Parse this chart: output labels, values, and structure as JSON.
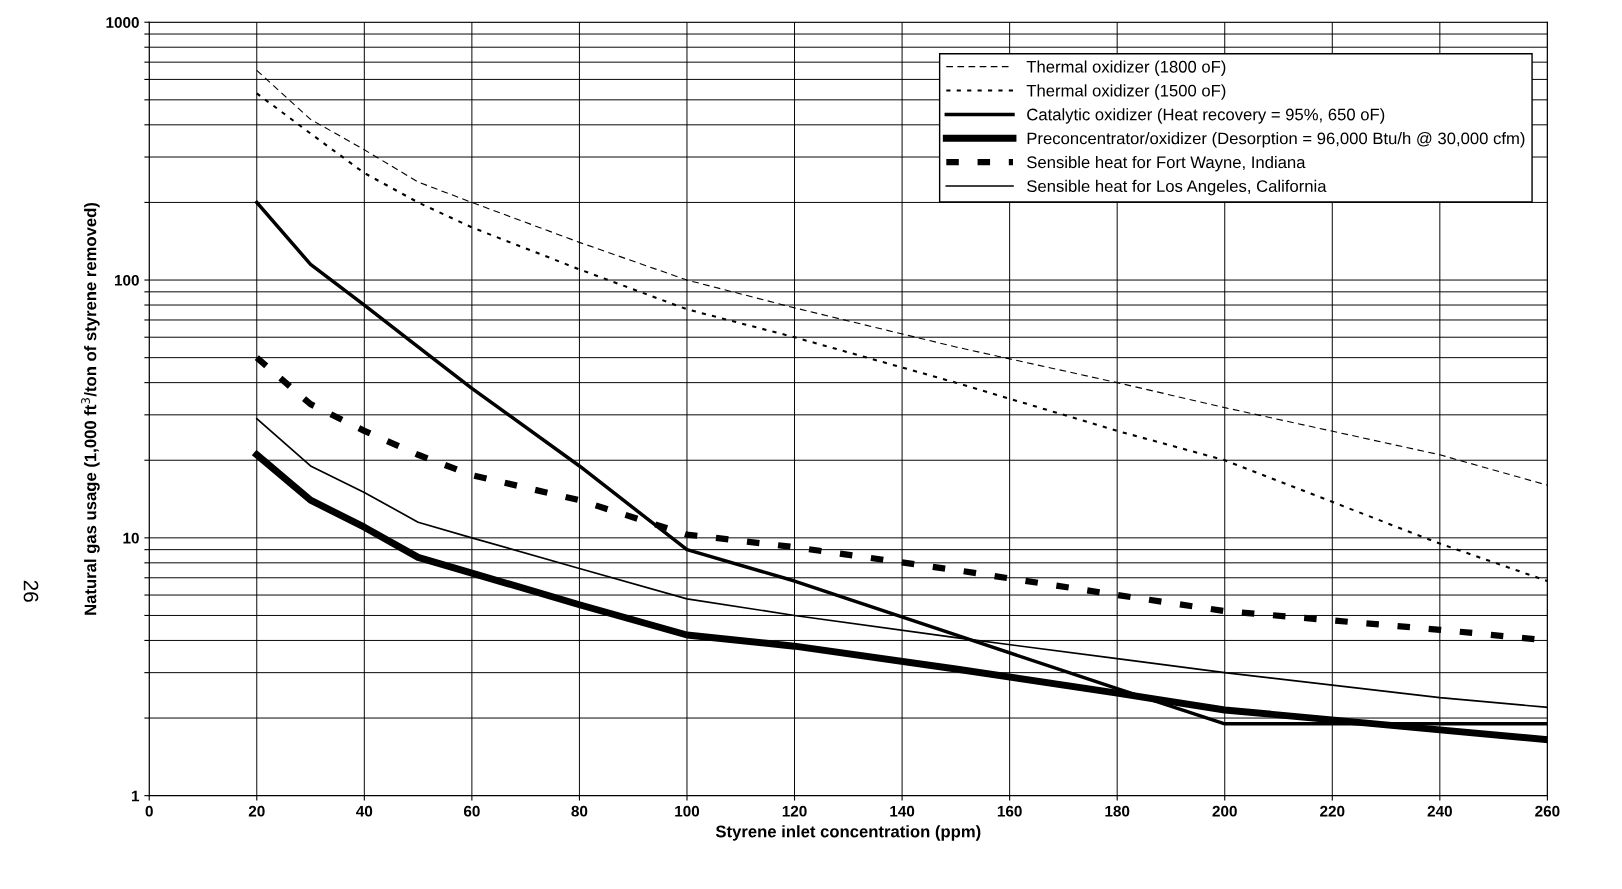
{
  "chart_data": {
    "type": "line",
    "xlabel": "Styrene inlet concentration (ppm)",
    "ylabel": "Natural gas usage (1,000 ft$^{3}$/ton of styrene removed)",
    "x": [
      20,
      30,
      40,
      50,
      60,
      80,
      100,
      120,
      150,
      180,
      200,
      240,
      260
    ],
    "series": [
      {
        "name": "Thermal oxidizer (1800 oF)",
        "color": "#000000",
        "line_style": "dashed",
        "values": [
          650,
          420,
          320,
          240,
          200,
          140,
          100,
          78,
          55,
          40,
          32,
          21,
          16
        ]
      },
      {
        "name": "Thermal oxidizer (1500 oF)",
        "color": "#000000",
        "line_style": "dotted",
        "values": [
          530,
          370,
          260,
          200,
          160,
          110,
          77,
          60,
          40,
          26,
          20,
          9.5,
          6.8
        ]
      },
      {
        "name": "Catalytic oxidizer (Heat recovery = 95%, 650 oF)",
        "color": "#000000",
        "line_style": "solid",
        "values": [
          200,
          115,
          80,
          55,
          38,
          19,
          9,
          6.8,
          4.2,
          2.6,
          1.9,
          1.9,
          1.9
        ]
      },
      {
        "name": "Preconcentrator/oxidizer (Desorption = 96,000 Btu/h @ 30,000 cfm)",
        "color": "#000000",
        "line_style": "solid",
        "values": [
          21,
          14,
          11,
          8.4,
          7.3,
          5.5,
          4.2,
          3.8,
          3.1,
          2.5,
          2.15,
          1.8,
          1.65
        ]
      },
      {
        "name": "Sensible heat for Fort Wayne, Indiana",
        "color": "#000000",
        "line_style": "dashed",
        "values": [
          50,
          33,
          26,
          21,
          17.5,
          14,
          10.3,
          9.2,
          7.5,
          6.0,
          5.2,
          4.4,
          4.0
        ]
      },
      {
        "name": "Sensible heat for Los Angeles, California",
        "color": "#000000",
        "line_style": "solid",
        "values": [
          29,
          19,
          15,
          11.5,
          10,
          7.6,
          5.8,
          5.0,
          4.1,
          3.4,
          3.0,
          2.4,
          2.2
        ]
      }
    ],
    "log": "y",
    "xlim": [
      0,
      260
    ],
    "xticks": [
      0,
      20,
      40,
      60,
      80,
      100,
      120,
      140,
      160,
      180,
      200,
      220,
      240,
      260
    ],
    "ylim": [
      1,
      1000
    ],
    "yticks": [
      1,
      {
        "value": 2,
        "label": null
      },
      {
        "value": 3,
        "label": null
      },
      {
        "value": 4,
        "label": null
      },
      {
        "value": 5,
        "label": null
      },
      {
        "value": 6,
        "label": null
      },
      {
        "value": 7,
        "label": null
      },
      {
        "value": 8,
        "label": null
      },
      {
        "value": 9,
        "label": null
      },
      10,
      {
        "value": 20,
        "label": null
      },
      {
        "value": 30,
        "label": null
      },
      {
        "value": 40,
        "label": null
      },
      {
        "value": 50,
        "label": null
      },
      {
        "value": 60,
        "label": null
      },
      {
        "value": 70,
        "label": null
      },
      {
        "value": 80,
        "label": null
      },
      {
        "value": 90,
        "label": null
      },
      100,
      {
        "value": 200,
        "label": null
      },
      {
        "value": 300,
        "label": null
      },
      {
        "value": 400,
        "label": null
      },
      {
        "value": 500,
        "label": null
      },
      {
        "value": 600,
        "label": null
      },
      {
        "value": 700,
        "label": null
      },
      {
        "value": 800,
        "label": null
      },
      {
        "value": 900,
        "label": null
      },
      1000
    ],
    "grid": true,
    "legend": "top right",
    "annotations": [
      "26"
    ]
  }
}
